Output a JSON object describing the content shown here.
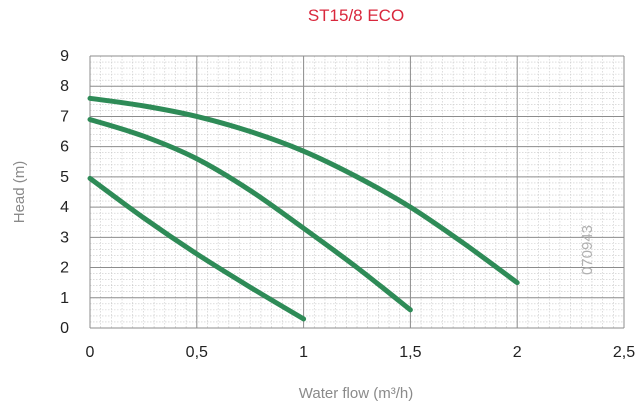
{
  "chart_data": {
    "type": "line",
    "title": "ST15/8 ECO",
    "xlabel": "Water flow (m³/h)",
    "ylabel": "Head (m)",
    "xlim": [
      0,
      2.5
    ],
    "ylim": [
      0,
      9
    ],
    "x_ticks": [
      0,
      0.5,
      1,
      1.5,
      2,
      2.5
    ],
    "x_tick_labels": [
      "0",
      "0,5",
      "1",
      "1,5",
      "2",
      "2,5"
    ],
    "y_ticks": [
      0,
      1,
      2,
      3,
      4,
      5,
      6,
      7,
      8,
      9
    ],
    "y_tick_labels": [
      "0",
      "1",
      "2",
      "3",
      "4",
      "5",
      "6",
      "7",
      "8",
      "9"
    ],
    "grid": true,
    "minor_grid": true,
    "watermark": "070943",
    "series": [
      {
        "x": [
          0,
          0.25,
          0.5,
          0.75,
          1.0,
          1.25,
          1.5,
          1.75,
          2.0
        ],
        "y": [
          7.6,
          7.35,
          7.0,
          6.5,
          5.85,
          5.0,
          4.0,
          2.8,
          1.5
        ]
      },
      {
        "x": [
          0,
          0.25,
          0.5,
          0.75,
          1.0,
          1.25,
          1.5
        ],
        "y": [
          6.9,
          6.35,
          5.6,
          4.55,
          3.3,
          2.0,
          0.6
        ]
      },
      {
        "x": [
          0,
          0.25,
          0.5,
          0.75,
          1.0
        ],
        "y": [
          4.95,
          3.65,
          2.45,
          1.35,
          0.3
        ]
      }
    ],
    "colors": {
      "line": "#2e8b57",
      "grid_major": "#8c8c8c",
      "grid_minor": "#c8c8c8",
      "title": "#d9273c"
    }
  }
}
